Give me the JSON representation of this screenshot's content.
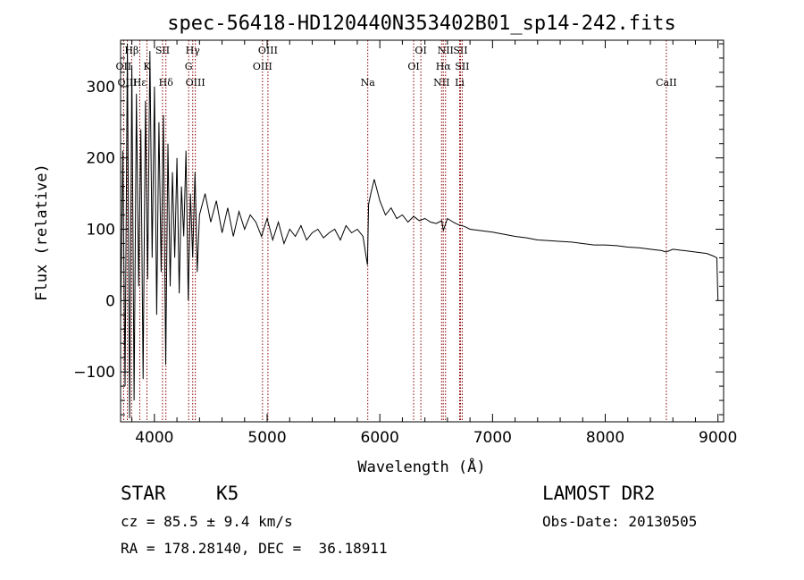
{
  "chart_data": {
    "type": "line",
    "title": "spec-56418-HD120440N353402B01_sp14-242.fits",
    "xlabel": "Wavelength (Å)",
    "ylabel": "Flux (relative)",
    "xlim": [
      3700,
      9050
    ],
    "ylim": [
      -170,
      365
    ],
    "xticks": [
      4000,
      5000,
      6000,
      7000,
      8000,
      9000
    ],
    "yticks": [
      -100,
      0,
      100,
      200,
      300
    ],
    "grid": false,
    "series": [
      {
        "color": "#000000",
        "x": [
          3700,
          3720,
          3740,
          3760,
          3780,
          3800,
          3820,
          3840,
          3860,
          3880,
          3900,
          3920,
          3940,
          3960,
          3980,
          4000,
          4020,
          4040,
          4060,
          4080,
          4100,
          4120,
          4140,
          4160,
          4180,
          4200,
          4220,
          4240,
          4260,
          4280,
          4300,
          4320,
          4340,
          4360,
          4380,
          4400,
          4450,
          4500,
          4550,
          4600,
          4650,
          4700,
          4750,
          4800,
          4850,
          4900,
          4950,
          5000,
          5050,
          5100,
          5150,
          5200,
          5250,
          5300,
          5350,
          5400,
          5450,
          5500,
          5550,
          5600,
          5650,
          5700,
          5750,
          5800,
          5850,
          5890,
          5900,
          5920,
          5950,
          6000,
          6050,
          6100,
          6150,
          6200,
          6250,
          6300,
          6350,
          6400,
          6450,
          6500,
          6550,
          6563,
          6600,
          6650,
          6700,
          6750,
          6800,
          6900,
          7000,
          7100,
          7200,
          7300,
          7400,
          7500,
          7600,
          7700,
          7800,
          7900,
          8000,
          8100,
          8200,
          8300,
          8400,
          8500,
          8540,
          8600,
          8700,
          8800,
          8900,
          8950,
          8990,
          9000
        ],
        "y": [
          -30,
          210,
          -120,
          360,
          -165,
          330,
          -140,
          290,
          20,
          240,
          -110,
          280,
          30,
          350,
          60,
          300,
          -20,
          250,
          40,
          260,
          -90,
          220,
          20,
          180,
          60,
          200,
          10,
          160,
          90,
          210,
          0,
          150,
          60,
          180,
          40,
          120,
          150,
          110,
          140,
          95,
          130,
          90,
          125,
          100,
          120,
          110,
          90,
          115,
          85,
          110,
          80,
          100,
          90,
          105,
          85,
          95,
          100,
          88,
          95,
          100,
          85,
          105,
          95,
          100,
          90,
          50,
          135,
          150,
          170,
          140,
          120,
          130,
          115,
          120,
          110,
          118,
          112,
          115,
          110,
          108,
          112,
          98,
          115,
          110,
          106,
          104,
          100,
          98,
          96,
          93,
          90,
          88,
          85,
          84,
          83,
          82,
          80,
          78,
          78,
          77,
          75,
          74,
          72,
          70,
          68,
          72,
          70,
          68,
          66,
          63,
          60,
          0
        ]
      }
    ],
    "line_markers": [
      {
        "label": "Hβ",
        "x": 3798,
        "row": 0
      },
      {
        "label": "OII",
        "x": 3727,
        "row": 1
      },
      {
        "label": "OIII",
        "x": 3760,
        "row": 2
      },
      {
        "label": "Hε",
        "x": 3870,
        "row": 2
      },
      {
        "label": "K",
        "x": 3934,
        "row": 1
      },
      {
        "label": "SII",
        "x": 4072,
        "row": 0
      },
      {
        "label": "Hδ",
        "x": 4102,
        "row": 2
      },
      {
        "label": "Hγ",
        "x": 4340,
        "row": 0
      },
      {
        "label": "G",
        "x": 4304,
        "row": 1
      },
      {
        "label": "OIII",
        "x": 4363,
        "row": 2
      },
      {
        "label": "OIII",
        "x": 4959,
        "row": 1
      },
      {
        "label": "OIII",
        "x": 5007,
        "row": 0
      },
      {
        "label": "Na",
        "x": 5893,
        "row": 2
      },
      {
        "label": "OI",
        "x": 6300,
        "row": 1
      },
      {
        "label": "OI",
        "x": 6364,
        "row": 0
      },
      {
        "label": "NII",
        "x": 6548,
        "row": 2
      },
      {
        "label": "NII",
        "x": 6583,
        "row": 0
      },
      {
        "label": "Hα",
        "x": 6563,
        "row": 1
      },
      {
        "label": "SII",
        "x": 6716,
        "row": 0
      },
      {
        "label": "SII",
        "x": 6731,
        "row": 1
      },
      {
        "label": "Li",
        "x": 6708,
        "row": 2
      },
      {
        "label": "CaII",
        "x": 8542,
        "row": 2
      }
    ],
    "marker_color": "#8b0000"
  },
  "info": {
    "class_label": "STAR",
    "subclass": "K5",
    "survey": "LAMOST DR2",
    "cz": "cz = 85.5 ± 9.4 km/s",
    "obs_date": "Obs-Date: 20130505",
    "radec": "RA = 178.28140, DEC =  36.18911"
  }
}
